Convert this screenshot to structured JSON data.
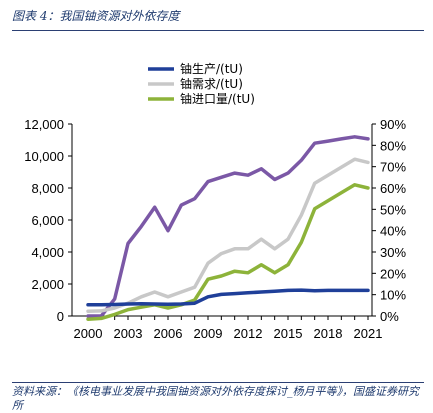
{
  "figure": {
    "title": "图表 4：我国铀资源对外依存度",
    "source": "资料来源：《核电事业发展中我国铀资源对外依存度探讨_杨月平等》，国盛证券研究所"
  },
  "chart_data": {
    "type": "line",
    "x": [
      2000,
      2001,
      2002,
      2003,
      2004,
      2005,
      2006,
      2007,
      2008,
      2009,
      2010,
      2011,
      2012,
      2013,
      2014,
      2015,
      2016,
      2017,
      2018,
      2019,
      2020,
      2021
    ],
    "x_ticks": [
      2000,
      2003,
      2006,
      2009,
      2012,
      2015,
      2018,
      2021
    ],
    "ylim_left": [
      0,
      12000
    ],
    "yticks_left": [
      "0",
      "2,000",
      "4,000",
      "6,000",
      "8,000",
      "10,000",
      "12,000"
    ],
    "ylim_right": [
      0,
      90
    ],
    "yticks_right": [
      "0%",
      "10%",
      "20%",
      "30%",
      "40%",
      "50%",
      "60%",
      "70%",
      "80%",
      "90%"
    ],
    "legend_position": "top-left",
    "series": [
      {
        "name": "铀生产/(tU)",
        "axis": "left",
        "color": "#1f3f99",
        "values": [
          700,
          700,
          720,
          750,
          760,
          750,
          740,
          750,
          800,
          1200,
          1350,
          1400,
          1450,
          1500,
          1550,
          1600,
          1620,
          1580,
          1600,
          1600,
          1600,
          1600
        ]
      },
      {
        "name": "铀需求/(tU)",
        "axis": "left",
        "color": "#c8c8c8",
        "values": [
          300,
          320,
          500,
          800,
          1200,
          1500,
          1200,
          1500,
          1800,
          3300,
          3900,
          4200,
          4200,
          4800,
          4200,
          4800,
          6300,
          8300,
          8800,
          9300,
          9800,
          9600
        ]
      },
      {
        "name": "铀进口量/(tU)",
        "axis": "left",
        "color": "#8db33a",
        "values": [
          -200,
          -150,
          100,
          400,
          550,
          700,
          500,
          700,
          1000,
          2300,
          2500,
          2800,
          2700,
          3200,
          2700,
          3200,
          4600,
          6700,
          7200,
          7700,
          8200,
          8000
        ]
      },
      {
        "name": "",
        "axis": "right",
        "color": "#7b58a6",
        "values": [
          0,
          0,
          8,
          34,
          42,
          51,
          40,
          52,
          55,
          63,
          65,
          67,
          66,
          69,
          64,
          67,
          73,
          81,
          82,
          83,
          84,
          83
        ]
      }
    ]
  }
}
